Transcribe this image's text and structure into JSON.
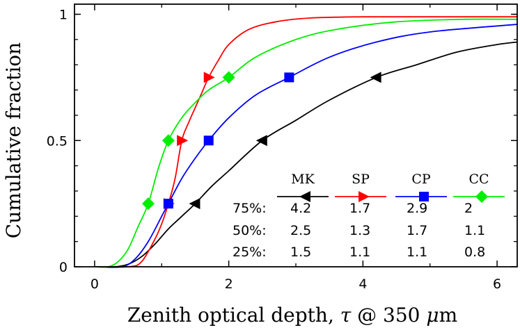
{
  "chart_data": {
    "type": "line",
    "xlabel_prefix": "Zenith optical depth, ",
    "xlabel_symbol": "τ",
    "xlabel_suffix": " @ 350 ",
    "xlabel_unit_symbol": "μ",
    "xlabel_unit": "m",
    "ylabel": "Cumulative fraction",
    "xlim": [
      -0.3,
      6.3
    ],
    "ylim": [
      0,
      1.04
    ],
    "xticks": [
      0,
      2,
      4,
      6
    ],
    "xtick_labels": [
      "0",
      "2",
      "4",
      "6"
    ],
    "yticks": [
      0,
      0.5,
      1
    ],
    "ytick_labels": [
      "0",
      "0.5",
      "1"
    ],
    "grid": false,
    "legend_position": "bottom-right",
    "row_labels": [
      "75%:",
      "50%:",
      "25%:"
    ],
    "series": [
      {
        "name": "MK",
        "color": "#000000",
        "marker": "triangle-left",
        "x": [
          0,
          0.3,
          0.5,
          0.7,
          0.9,
          1.1,
          1.3,
          1.5,
          1.75,
          2.0,
          2.5,
          3.0,
          3.5,
          4.2,
          4.8,
          5.4,
          6.0,
          6.3
        ],
        "y": [
          0,
          0.0,
          0.01,
          0.04,
          0.09,
          0.15,
          0.2,
          0.25,
          0.32,
          0.38,
          0.5,
          0.58,
          0.66,
          0.75,
          0.8,
          0.85,
          0.88,
          0.89
        ],
        "marker_x": [
          1.5,
          2.5,
          4.2
        ],
        "marker_y": [
          0.25,
          0.5,
          0.75
        ],
        "values_75_50_25": [
          "4.2",
          "2.5",
          "1.5"
        ]
      },
      {
        "name": "SP",
        "color": "#ff0000",
        "marker": "triangle-right",
        "x": [
          0,
          0.5,
          0.7,
          0.9,
          1.0,
          1.1,
          1.2,
          1.3,
          1.4,
          1.5,
          1.6,
          1.7,
          1.85,
          2.0,
          2.3,
          2.7,
          3.2,
          4.0,
          5.0,
          6.3
        ],
        "y": [
          0,
          0.0,
          0.02,
          0.11,
          0.17,
          0.25,
          0.35,
          0.5,
          0.57,
          0.63,
          0.69,
          0.75,
          0.82,
          0.88,
          0.94,
          0.97,
          0.985,
          0.99,
          0.99,
          0.99
        ],
        "marker_x": [
          1.1,
          1.3,
          1.7
        ],
        "marker_y": [
          0.25,
          0.5,
          0.75
        ],
        "values_75_50_25": [
          "1.7",
          "1.3",
          "1.1"
        ]
      },
      {
        "name": "CP",
        "color": "#0000ff",
        "marker": "square",
        "x": [
          0,
          0.4,
          0.6,
          0.8,
          1.0,
          1.1,
          1.3,
          1.5,
          1.7,
          2.0,
          2.4,
          2.9,
          3.5,
          4.2,
          5.0,
          6.3
        ],
        "y": [
          0,
          0.0,
          0.03,
          0.1,
          0.2,
          0.25,
          0.35,
          0.43,
          0.5,
          0.59,
          0.68,
          0.75,
          0.83,
          0.89,
          0.93,
          0.96
        ],
        "marker_x": [
          1.1,
          1.7,
          2.9
        ],
        "marker_y": [
          0.25,
          0.5,
          0.75
        ],
        "values_75_50_25": [
          "2.9",
          "1.7",
          "1.1"
        ]
      },
      {
        "name": "CC",
        "color": "#00ee00",
        "marker": "diamond",
        "x": [
          0,
          0.2,
          0.35,
          0.5,
          0.65,
          0.8,
          0.95,
          1.1,
          1.3,
          1.5,
          1.7,
          2.0,
          2.4,
          3.0,
          3.6,
          4.5,
          5.5,
          6.3
        ],
        "y": [
          0,
          0.0,
          0.02,
          0.07,
          0.16,
          0.25,
          0.39,
          0.5,
          0.59,
          0.65,
          0.7,
          0.75,
          0.83,
          0.9,
          0.94,
          0.97,
          0.98,
          0.98
        ],
        "marker_x": [
          0.8,
          1.1,
          2.0
        ],
        "marker_y": [
          0.25,
          0.5,
          0.75
        ],
        "values_75_50_25": [
          "2",
          "1.1",
          "0.8"
        ]
      }
    ]
  }
}
